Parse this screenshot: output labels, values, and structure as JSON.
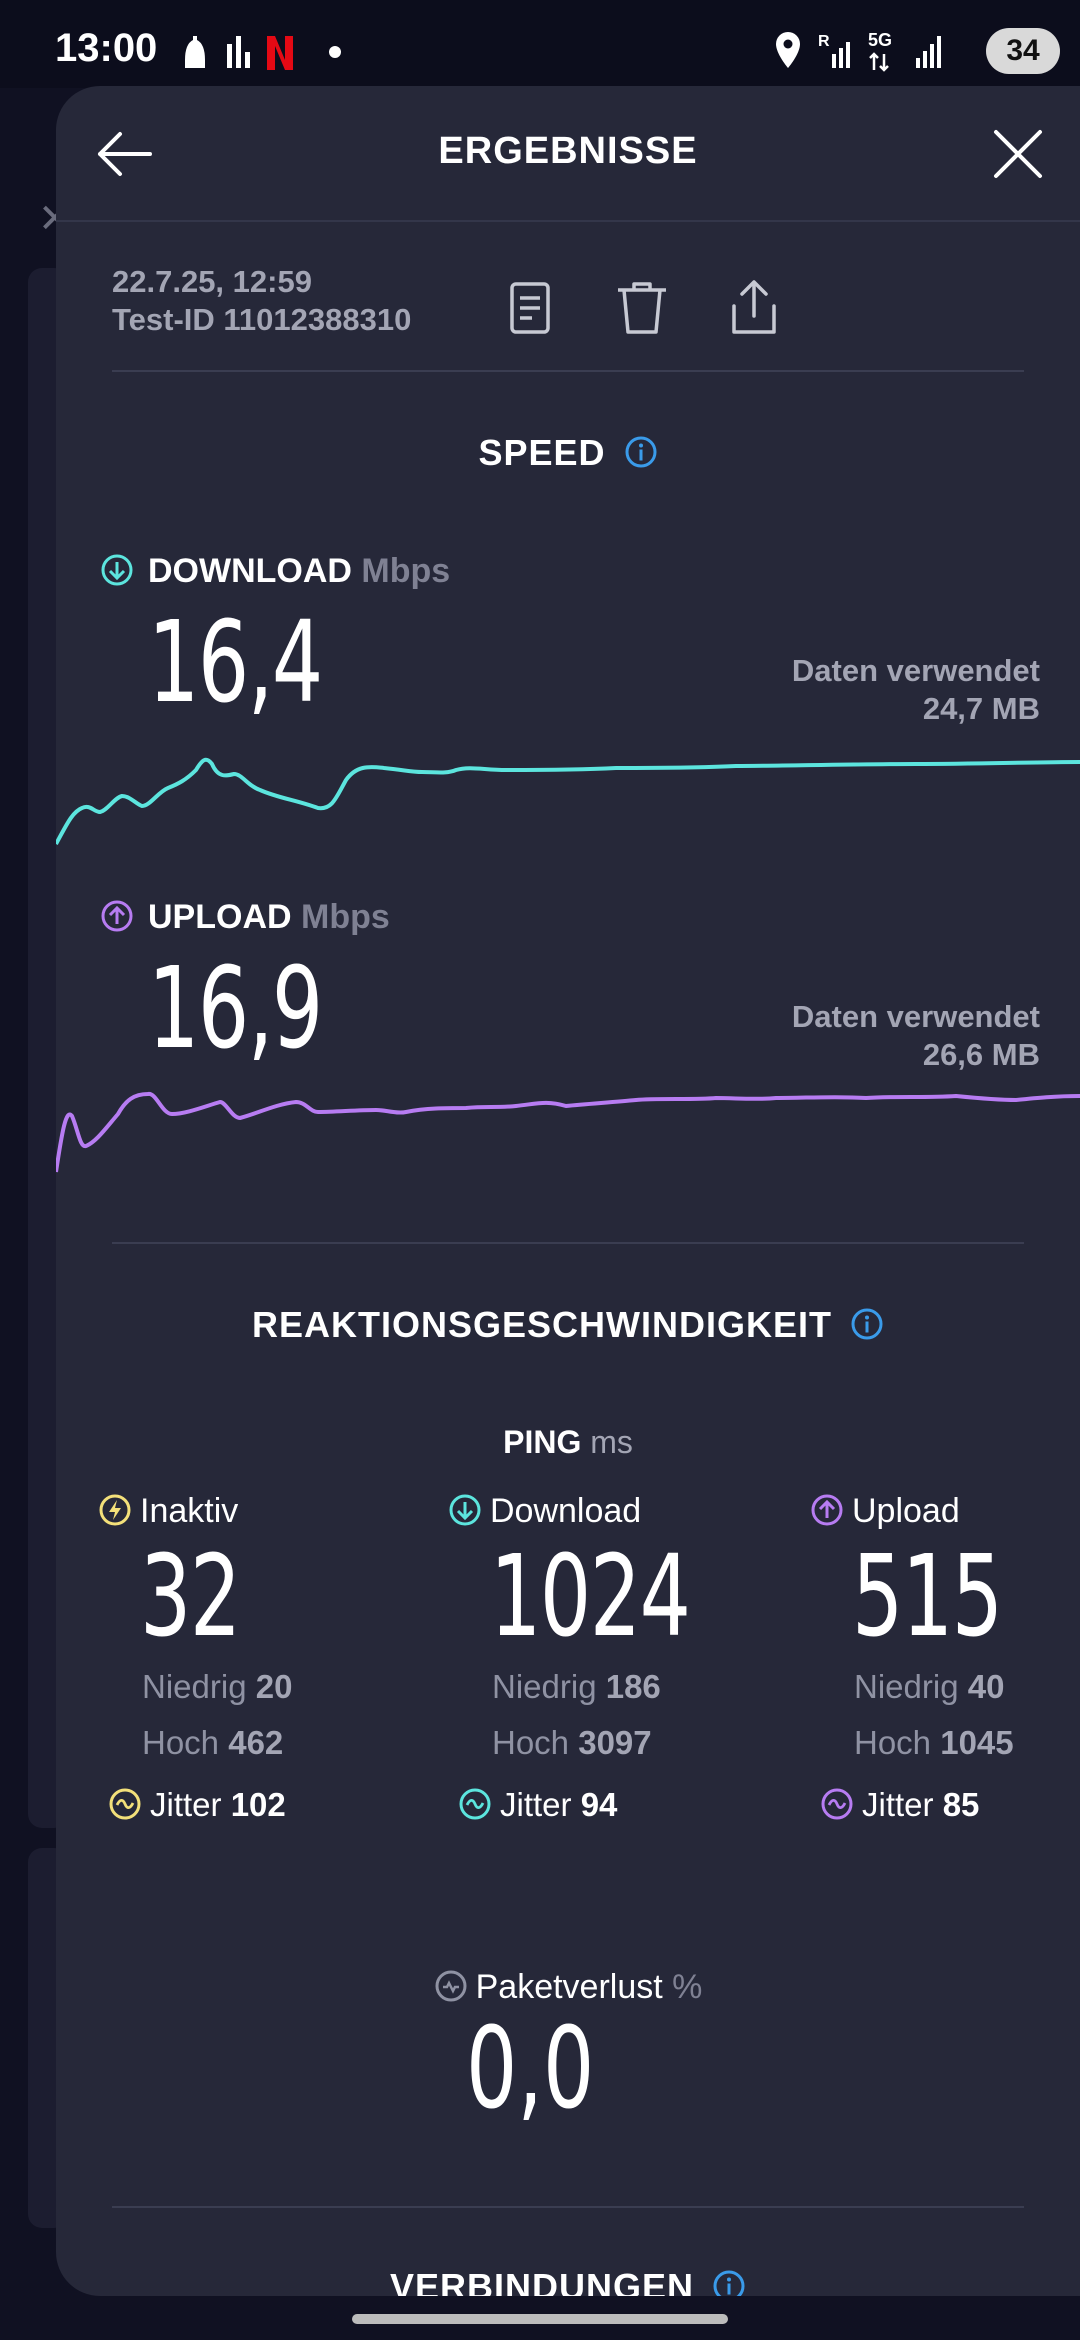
{
  "status_bar": {
    "time": "13:00",
    "battery": "34",
    "icons": [
      "notification-icon",
      "bars-icon",
      "netflix-icon",
      "dot-icon",
      "location-icon",
      "roaming-signal-icon",
      "5g-icon",
      "signal-icon"
    ]
  },
  "header": {
    "title": "ERGEBNISSE",
    "back_icon": "arrow-left-icon",
    "close_icon": "close-icon"
  },
  "meta": {
    "date": "22.7.25, 12:59",
    "test_id": "Test-ID 11012388310",
    "actions": [
      "document-icon",
      "trash-icon",
      "share-icon"
    ]
  },
  "speed": {
    "title": "SPEED",
    "download": {
      "label": "DOWNLOAD",
      "unit": "Mbps",
      "value": "16,4",
      "data_used_label": "Daten verwendet",
      "data_used_value": "24,7 MB",
      "color": "#5ce5de"
    },
    "upload": {
      "label": "UPLOAD",
      "unit": "Mbps",
      "value": "16,9",
      "data_used_label": "Daten verwendet",
      "data_used_value": "26,6 MB",
      "color": "#b77cf2"
    }
  },
  "responsiveness": {
    "title": "REAKTIONSGESCHWINDIGKEIT",
    "ping_label": "PING",
    "ping_unit": "ms",
    "columns": [
      {
        "label": "Inaktiv",
        "value": "32",
        "low_label": "Niedrig",
        "low": "20",
        "high_label": "Hoch",
        "high": "462",
        "jitter_label": "Jitter",
        "jitter": "102",
        "color": "#f3e07a"
      },
      {
        "label": "Download",
        "value": "1024",
        "low_label": "Niedrig",
        "low": "186",
        "high_label": "Hoch",
        "high": "3097",
        "jitter_label": "Jitter",
        "jitter": "94",
        "color": "#5ce5de"
      },
      {
        "label": "Upload",
        "value": "515",
        "low_label": "Niedrig",
        "low": "40",
        "high_label": "Hoch",
        "high": "1045",
        "jitter_label": "Jitter",
        "jitter": "85",
        "color": "#b77cf2"
      }
    ],
    "packet_loss": {
      "label": "Paketverlust",
      "unit": "%",
      "value": "0,0"
    }
  },
  "connections": {
    "title": "VERBINDUNGEN"
  },
  "colors": {
    "info": "#3a9bea",
    "sheet": "#262839",
    "background": "#0c0d1c"
  }
}
